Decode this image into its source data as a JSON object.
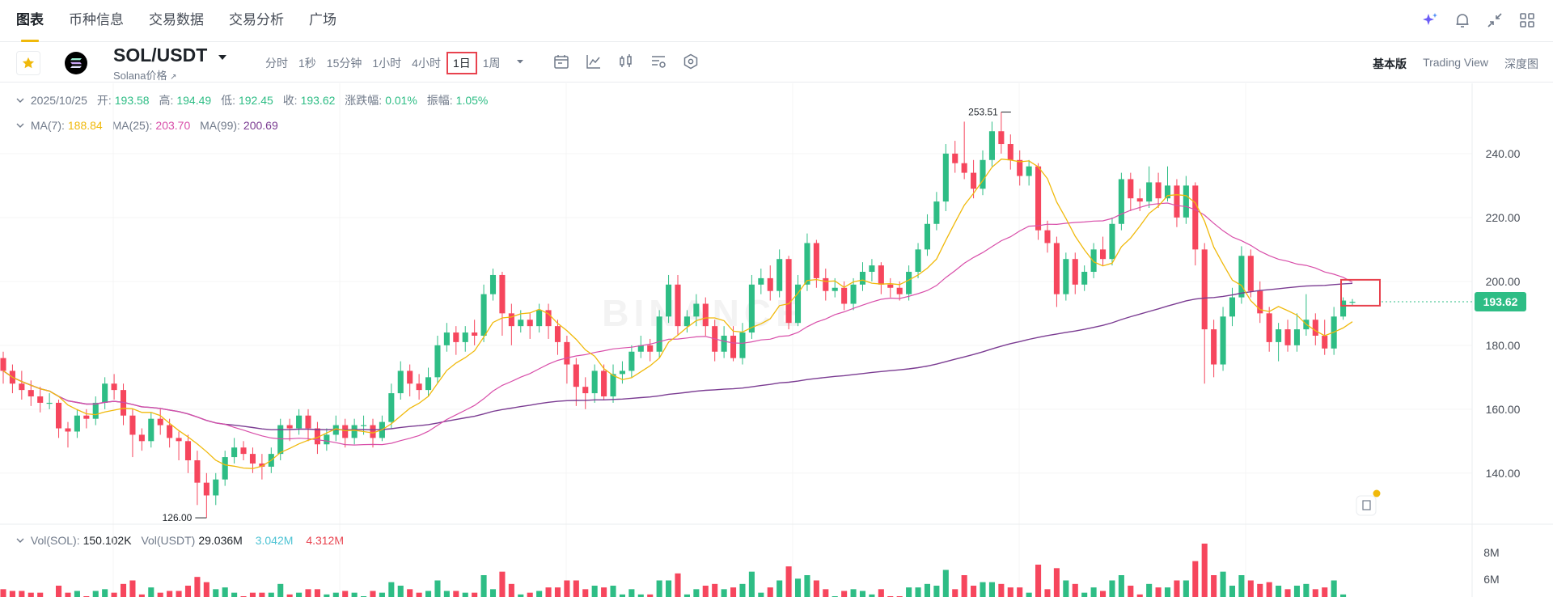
{
  "nav": {
    "tabs": [
      "图表",
      "币种信息",
      "交易数据",
      "交易分析",
      "广场"
    ],
    "active_tab": 0,
    "right_icons": [
      "ai-sparkle-icon",
      "bell-icon",
      "collapse-icon",
      "layout-icon"
    ]
  },
  "toolbar": {
    "pair": "SOL/USDT",
    "coin_subtitle": "Solana价格",
    "intervals": [
      "分时",
      "1秒",
      "15分钟",
      "1小时",
      "4小时",
      "1日",
      "1周"
    ],
    "selected_interval": 5,
    "views": [
      "基本版",
      "Trading View",
      "深度图"
    ],
    "active_view": 0,
    "tool_icons": [
      "calendar-icon",
      "indicator-icon",
      "candle-type-icon",
      "settings-list-icon",
      "hexagon-settings-icon"
    ]
  },
  "ohlc_legend": {
    "date": "2025/10/25",
    "open_label": "开:",
    "open": "193.58",
    "high_label": "高:",
    "high": "194.49",
    "low_label": "低:",
    "low": "192.45",
    "close_label": "收:",
    "close": "193.62",
    "change_label": "涨跌幅:",
    "change": "0.01%",
    "amplitude_label": "振幅:",
    "amplitude": "1.05%"
  },
  "ma_legend": {
    "ma7_label": "MA(7):",
    "ma7": "188.84",
    "ma25_label": "MA(25):",
    "ma25": "203.70",
    "ma99_label": "MA(99):",
    "ma99": "200.69"
  },
  "vol_legend": {
    "vol_sol_label": "Vol(SOL):",
    "vol_sol": "150.102K",
    "vol_usdt_label": "Vol(USDT)",
    "vol_usdt": "29.036M",
    "ma5": "3.042M",
    "ma10": "4.312M"
  },
  "colors": {
    "up": "#2ebd85",
    "down": "#f6465d",
    "ma7": "#f0b90b",
    "ma25": "#d84ea9",
    "ma99": "#7b3c92",
    "vol_ma5": "#4ec3d4",
    "vol_ma10": "#c2185b",
    "accent": "#f0b90b"
  },
  "chart_data": {
    "type": "candlestick",
    "price_axis": {
      "ticks": [
        140,
        160,
        180,
        200,
        220,
        240
      ],
      "tick_labels": [
        "140.00",
        "160.00",
        "180.00",
        "200.00",
        "220.00",
        "240.00"
      ],
      "range": [
        124,
        262
      ]
    },
    "volume_axis": {
      "ticks": [
        "6M",
        "8M"
      ]
    },
    "current_price": "193.62",
    "annotations": {
      "high": "253.51",
      "low": "126.00"
    },
    "watermark": "BINANCE",
    "series": [
      {
        "name": "candles",
        "ohlc": [
          [
            176,
            172,
            178,
            168
          ],
          [
            172,
            168,
            174,
            165
          ],
          [
            168,
            166,
            172,
            163
          ],
          [
            166,
            164,
            169,
            161
          ],
          [
            164,
            162,
            167,
            159
          ],
          [
            162,
            162,
            165,
            160
          ],
          [
            162,
            154,
            163,
            151
          ],
          [
            154,
            153,
            156,
            148
          ],
          [
            153,
            158,
            160,
            151
          ],
          [
            158,
            157,
            160,
            154
          ],
          [
            157,
            162,
            164,
            155
          ],
          [
            162,
            168,
            170,
            160
          ],
          [
            168,
            166,
            171,
            163
          ],
          [
            166,
            158,
            168,
            155
          ],
          [
            158,
            152,
            160,
            145
          ],
          [
            152,
            150,
            154,
            147
          ],
          [
            150,
            157,
            159,
            148
          ],
          [
            157,
            155,
            160,
            152
          ],
          [
            155,
            151,
            157,
            148
          ],
          [
            151,
            150,
            153,
            144
          ],
          [
            150,
            144,
            152,
            140
          ],
          [
            144,
            137,
            147,
            130
          ],
          [
            137,
            133,
            140,
            126
          ],
          [
            133,
            138,
            140,
            130
          ],
          [
            138,
            145,
            147,
            136
          ],
          [
            145,
            148,
            151,
            143
          ],
          [
            148,
            146,
            150,
            144
          ],
          [
            146,
            143,
            148,
            140
          ],
          [
            143,
            142,
            146,
            138
          ],
          [
            142,
            146,
            148,
            140
          ],
          [
            146,
            155,
            157,
            144
          ],
          [
            155,
            154,
            157,
            150
          ],
          [
            154,
            158,
            160,
            152
          ],
          [
            158,
            154,
            160,
            150
          ],
          [
            154,
            149,
            156,
            146
          ],
          [
            149,
            152,
            154,
            147
          ],
          [
            152,
            155,
            158,
            150
          ],
          [
            155,
            151,
            157,
            148
          ],
          [
            151,
            155,
            157,
            149
          ],
          [
            155,
            155,
            158,
            152
          ],
          [
            155,
            151,
            157,
            148
          ],
          [
            151,
            156,
            158,
            150
          ],
          [
            156,
            165,
            168,
            154
          ],
          [
            165,
            172,
            175,
            163
          ],
          [
            172,
            168,
            174,
            164
          ],
          [
            168,
            166,
            171,
            163
          ],
          [
            166,
            170,
            173,
            164
          ],
          [
            170,
            180,
            183,
            168
          ],
          [
            180,
            184,
            187,
            178
          ],
          [
            184,
            181,
            186,
            177
          ],
          [
            181,
            184,
            186,
            178
          ],
          [
            184,
            183,
            188,
            180
          ],
          [
            183,
            196,
            199,
            181
          ],
          [
            196,
            202,
            204,
            194
          ],
          [
            202,
            190,
            203,
            183
          ],
          [
            190,
            186,
            193,
            180
          ],
          [
            186,
            188,
            191,
            184
          ],
          [
            188,
            186,
            190,
            182
          ],
          [
            186,
            191,
            193,
            184
          ],
          [
            191,
            186,
            193,
            182
          ],
          [
            186,
            181,
            188,
            177
          ],
          [
            181,
            174,
            183,
            168
          ],
          [
            174,
            167,
            176,
            161
          ],
          [
            167,
            165,
            170,
            160
          ],
          [
            165,
            172,
            174,
            162
          ],
          [
            172,
            164,
            174,
            163
          ],
          [
            164,
            171,
            174,
            162
          ],
          [
            171,
            172,
            175,
            168
          ],
          [
            172,
            178,
            180,
            170
          ],
          [
            178,
            180,
            183,
            176
          ],
          [
            180,
            178,
            182,
            175
          ],
          [
            178,
            189,
            191,
            176
          ],
          [
            189,
            199,
            202,
            187
          ],
          [
            199,
            186,
            202,
            183
          ],
          [
            186,
            189,
            191,
            184
          ],
          [
            189,
            193,
            196,
            186
          ],
          [
            193,
            186,
            195,
            183
          ],
          [
            186,
            178,
            188,
            175
          ],
          [
            178,
            183,
            186,
            176
          ],
          [
            183,
            176,
            186,
            175
          ],
          [
            176,
            184,
            187,
            174
          ],
          [
            184,
            199,
            202,
            182
          ],
          [
            199,
            201,
            204,
            196
          ],
          [
            201,
            197,
            205,
            194
          ],
          [
            197,
            207,
            210,
            195
          ],
          [
            207,
            187,
            208,
            185
          ],
          [
            187,
            199,
            202,
            186
          ],
          [
            199,
            212,
            215,
            197
          ],
          [
            212,
            201,
            213,
            198
          ],
          [
            201,
            197,
            204,
            194
          ],
          [
            197,
            198,
            201,
            195
          ],
          [
            198,
            193,
            200,
            191
          ],
          [
            193,
            199,
            201,
            191
          ],
          [
            199,
            203,
            206,
            197
          ],
          [
            203,
            205,
            207,
            200
          ],
          [
            205,
            199,
            206,
            196
          ],
          [
            199,
            198,
            201,
            195
          ],
          [
            198,
            196,
            200,
            194
          ],
          [
            196,
            203,
            205,
            194
          ],
          [
            203,
            210,
            212,
            201
          ],
          [
            210,
            218,
            221,
            208
          ],
          [
            218,
            225,
            228,
            216
          ],
          [
            225,
            240,
            243,
            222
          ],
          [
            240,
            237,
            244,
            234
          ],
          [
            237,
            234,
            250,
            232
          ],
          [
            234,
            229,
            238,
            226
          ],
          [
            229,
            238,
            241,
            227
          ],
          [
            238,
            247,
            250,
            236
          ],
          [
            247,
            243,
            253,
            240
          ],
          [
            243,
            238,
            246,
            235
          ],
          [
            238,
            233,
            241,
            230
          ],
          [
            233,
            236,
            238,
            230
          ],
          [
            236,
            216,
            237,
            213
          ],
          [
            216,
            212,
            219,
            209
          ],
          [
            212,
            196,
            214,
            192
          ],
          [
            196,
            207,
            209,
            194
          ],
          [
            207,
            199,
            209,
            196
          ],
          [
            199,
            203,
            205,
            197
          ],
          [
            203,
            210,
            212,
            201
          ],
          [
            210,
            207,
            214,
            205
          ],
          [
            207,
            218,
            220,
            205
          ],
          [
            218,
            232,
            234,
            216
          ],
          [
            232,
            226,
            234,
            222
          ],
          [
            226,
            225,
            229,
            222
          ],
          [
            225,
            231,
            236,
            223
          ],
          [
            231,
            226,
            234,
            223
          ],
          [
            226,
            230,
            236,
            225
          ],
          [
            230,
            220,
            232,
            217
          ],
          [
            220,
            230,
            233,
            218
          ],
          [
            230,
            210,
            231,
            205
          ],
          [
            210,
            185,
            212,
            168
          ],
          [
            185,
            174,
            188,
            170
          ],
          [
            174,
            189,
            192,
            172
          ],
          [
            189,
            195,
            198,
            186
          ],
          [
            195,
            208,
            211,
            193
          ],
          [
            208,
            197,
            210,
            195
          ],
          [
            197,
            190,
            200,
            187
          ],
          [
            190,
            181,
            192,
            178
          ],
          [
            181,
            185,
            187,
            175
          ],
          [
            185,
            180,
            188,
            178
          ],
          [
            180,
            185,
            190,
            178
          ],
          [
            185,
            188,
            196,
            183
          ],
          [
            188,
            183,
            190,
            180
          ],
          [
            183,
            179,
            188,
            177
          ],
          [
            179,
            189,
            192,
            177
          ],
          [
            189,
            194,
            195,
            188
          ],
          [
            193.58,
            193.62,
            194.49,
            192.45
          ]
        ]
      }
    ]
  }
}
